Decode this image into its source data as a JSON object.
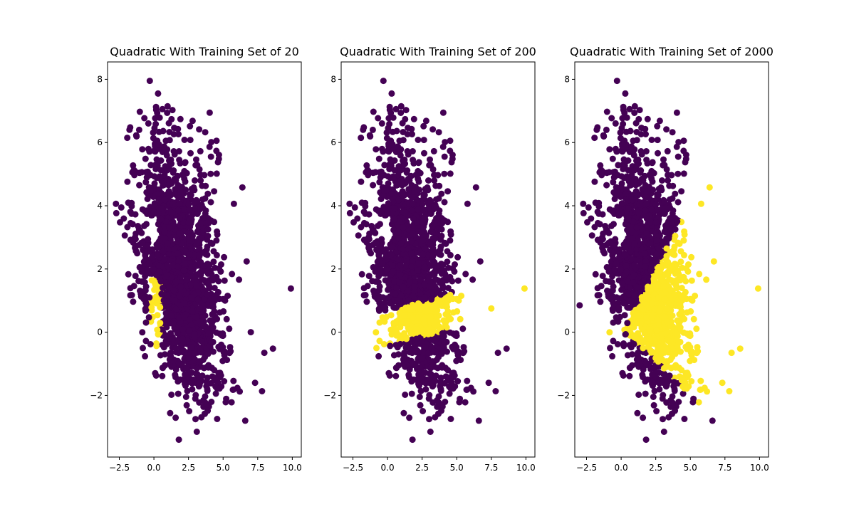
{
  "colors": {
    "class_0": "#440154",
    "class_1": "#fde725",
    "axis": "#000000",
    "background": "#ffffff"
  },
  "chart_data": [
    {
      "type": "scatter",
      "title": "Quadratic With Training Set of 20",
      "xlabel": "",
      "ylabel": "",
      "xlim": [
        -3.35,
        10.65
      ],
      "ylim": [
        -3.95,
        8.55
      ],
      "xticks": [
        -2.5,
        0.0,
        2.5,
        5.0,
        7.5,
        10.0
      ],
      "xtick_labels": [
        "−2.5",
        "0.0",
        "2.5",
        "5.0",
        "7.5",
        "10.0"
      ],
      "yticks": [
        -2,
        0,
        2,
        4,
        6,
        8
      ],
      "ytick_labels": [
        "−2",
        "0",
        "2",
        "4",
        "6",
        "8"
      ],
      "grid": false,
      "legend": "none",
      "class_1_region": {
        "shape": "narrow vertical strip",
        "x_range": [
          -0.6,
          0.8
        ],
        "y_range": [
          -0.55,
          1.65
        ]
      },
      "outliers": [
        [
          -0.3,
          7.95
        ],
        [
          0.3,
          7.55
        ],
        [
          9.9,
          1.38
        ],
        [
          8.6,
          -0.52
        ],
        [
          3.1,
          -3.15
        ],
        [
          1.8,
          -3.4
        ],
        [
          6.6,
          -2.8
        ],
        [
          7.0,
          0.0
        ]
      ]
    },
    {
      "type": "scatter",
      "title": "Quadratic With Training Set of 200",
      "xlabel": "",
      "ylabel": "",
      "xlim": [
        -3.35,
        10.65
      ],
      "ylim": [
        -3.95,
        8.55
      ],
      "xticks": [
        -2.5,
        0.0,
        2.5,
        5.0,
        7.5,
        10.0
      ],
      "xtick_labels": [
        "−2.5",
        "0.0",
        "2.5",
        "5.0",
        "7.5",
        "10.0"
      ],
      "yticks": [
        -2,
        0,
        2,
        4,
        6,
        8
      ],
      "ytick_labels": [
        "−2",
        "0",
        "2",
        "4",
        "6",
        "8"
      ],
      "grid": false,
      "legend": "none",
      "class_1_region": {
        "shape": "tilted band",
        "center_line": [
          [
            -3.0,
            -0.25
          ],
          [
            10.0,
            1.3
          ]
        ],
        "half_width": 0.55
      },
      "outliers": [
        [
          -0.3,
          7.95
        ],
        [
          0.3,
          7.55
        ],
        [
          9.9,
          1.38
        ],
        [
          8.6,
          -0.52
        ],
        [
          3.1,
          -3.15
        ],
        [
          1.8,
          -3.4
        ],
        [
          6.6,
          -2.8
        ],
        [
          7.5,
          0.75
        ]
      ]
    },
    {
      "type": "scatter",
      "title": "Quadratic With Training Set of 2000",
      "xlabel": "",
      "ylabel": "",
      "xlim": [
        -3.35,
        10.65
      ],
      "ylim": [
        -3.95,
        8.55
      ],
      "xticks": [
        -2.5,
        0.0,
        2.5,
        5.0,
        7.5,
        10.0
      ],
      "xtick_labels": [
        "−2.5",
        "0.0",
        "2.5",
        "5.0",
        "7.5",
        "10.0"
      ],
      "yticks": [
        -2,
        0,
        2,
        4,
        6,
        8
      ],
      "ytick_labels": [
        "−2",
        "0",
        "2",
        "4",
        "6",
        "8"
      ],
      "grid": false,
      "legend": "none",
      "class_1_region": {
        "shape": "hyperbolic wedge",
        "vertex": [
          0.2,
          0.05
        ],
        "upper_boundary_slope": 0.85,
        "lower_boundary_slope": -0.42
      },
      "outliers": [
        [
          -0.3,
          7.95
        ],
        [
          0.3,
          7.55
        ],
        [
          9.9,
          1.38
        ],
        [
          8.6,
          -0.52
        ],
        [
          3.1,
          -3.15
        ],
        [
          1.8,
          -3.4
        ],
        [
          6.6,
          -2.8
        ],
        [
          -3.0,
          0.85
        ]
      ]
    }
  ]
}
